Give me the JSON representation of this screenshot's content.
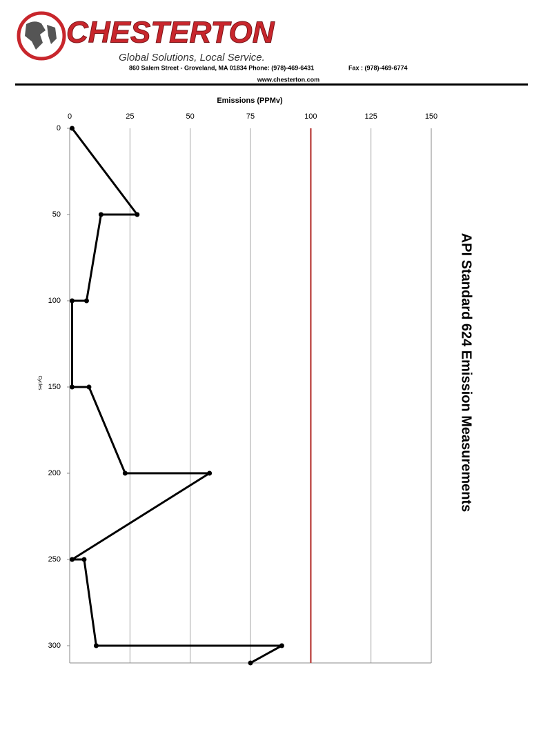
{
  "header": {
    "brand": "CHESTERTON",
    "slogan": "Global Solutions, Local Service.",
    "address": "860 Salem Street - Groveland, MA 01834 Phone: (978)-469-6431",
    "fax": "Fax : (978)-469-6774",
    "website": "www.chesterton.com"
  },
  "chart_data": {
    "type": "line",
    "title": "API Standard 624 Emission Measurements",
    "x_label": "Emissions (PPMv)",
    "y_label": "Cycles",
    "x": [
      1,
      28,
      13,
      7,
      1,
      1,
      8,
      23,
      58,
      1,
      6,
      11,
      88,
      75
    ],
    "y": [
      0,
      50,
      50,
      100,
      100,
      150,
      150,
      200,
      200,
      250,
      250,
      300,
      300,
      310
    ],
    "color": "#000000",
    "xlim": [
      0,
      150
    ],
    "xticks": [
      0,
      25,
      50,
      75,
      100,
      125,
      150
    ],
    "ylim": [
      0,
      310
    ],
    "yticks": [
      0,
      50,
      100,
      150,
      200,
      250,
      300
    ],
    "y_inverted": true,
    "grid": true,
    "reference_line": {
      "value": 100,
      "color": "#c0504d"
    }
  }
}
